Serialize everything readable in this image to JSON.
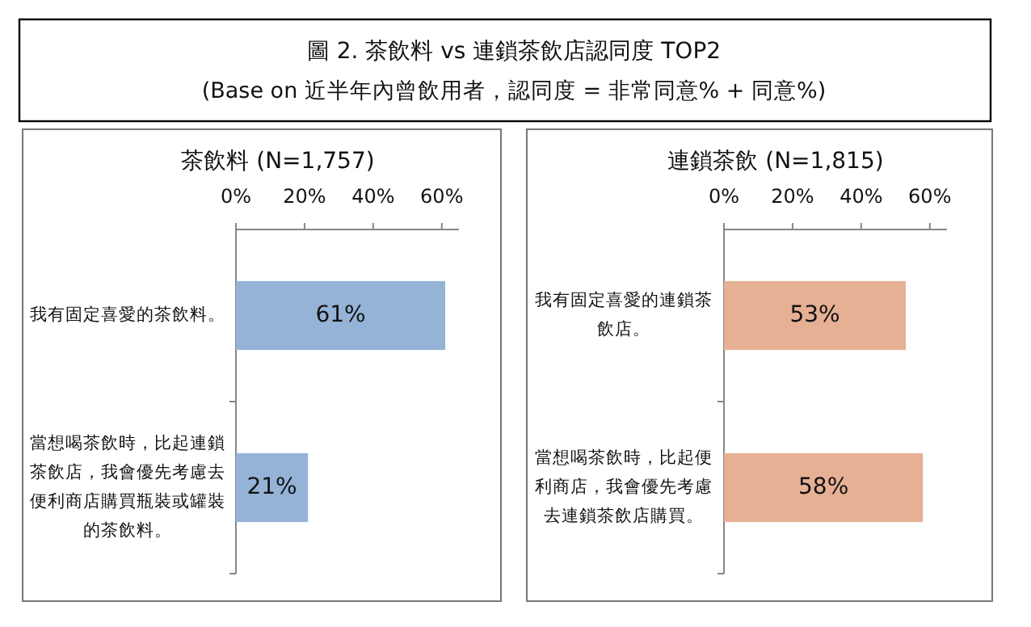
{
  "chart_data": [
    {
      "type": "other",
      "title": "圖 2.  茶飲料 vs 連鎖茶飲店認同度 TOP2",
      "subtitle": "(Base on 近半年內曾飲用者，認同度 = 非常同意% + 同意%)"
    },
    {
      "type": "bar",
      "orientation": "horizontal",
      "title": "茶飲料 (N=1,757)",
      "categories": [
        "我有固定喜愛的茶飲料。",
        "當想喝茶飲時，比起連鎖茶飲店，我會優先考慮去便利商店購買瓶裝或罐裝的茶飲料。"
      ],
      "values": [
        61,
        21
      ],
      "value_labels": [
        "61%",
        "21%"
      ],
      "color": "#95b3d7",
      "xlim": [
        0,
        65
      ],
      "xticks": [
        {
          "value": 0,
          "label": "0%"
        },
        {
          "value": 20,
          "label": "20%"
        },
        {
          "value": 40,
          "label": "40%"
        },
        {
          "value": 60,
          "label": "60%"
        }
      ]
    },
    {
      "type": "bar",
      "orientation": "horizontal",
      "title": "連鎖茶飲 (N=1,815)",
      "categories": [
        "我有固定喜愛的連鎖茶飲店。",
        "當想喝茶飲時，比起便利商店，我會優先考慮去連鎖茶飲店購買。"
      ],
      "values": [
        53,
        58
      ],
      "value_labels": [
        "53%",
        "58%"
      ],
      "color": "#e6b095",
      "xlim": [
        0,
        65
      ],
      "xticks": [
        {
          "value": 0,
          "label": "0%"
        },
        {
          "value": 20,
          "label": "20%"
        },
        {
          "value": 40,
          "label": "40%"
        },
        {
          "value": 60,
          "label": "60%"
        }
      ]
    }
  ]
}
